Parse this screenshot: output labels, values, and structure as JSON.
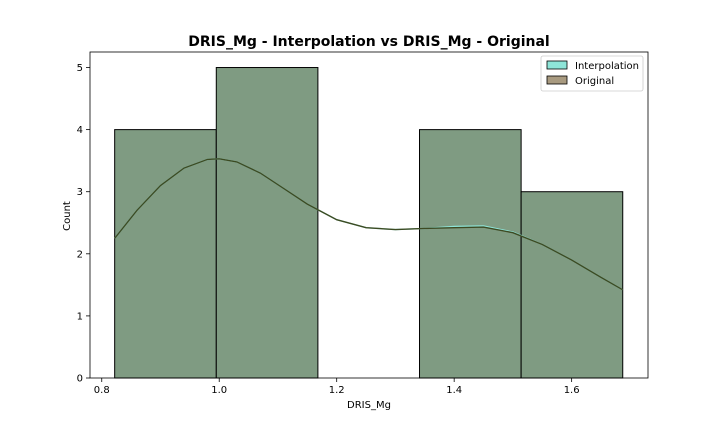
{
  "chart_data": {
    "type": "histogram",
    "title": "DRIS_Mg - Interpolation vs DRIS_Mg - Original",
    "xlabel": "DRIS_Mg",
    "ylabel": "Count",
    "xlim": [
      0.78,
      1.73
    ],
    "ylim": [
      0,
      5.25
    ],
    "xticks": [
      0.8,
      1.0,
      1.2,
      1.4,
      1.6
    ],
    "xtick_labels": [
      "0.8",
      "1.0",
      "1.2",
      "1.4",
      "1.6"
    ],
    "yticks": [
      0,
      1,
      2,
      3,
      4,
      5
    ],
    "ytick_labels": [
      "0",
      "1",
      "2",
      "3",
      "4",
      "5"
    ],
    "grid": false,
    "legend_position": "top-right",
    "bins": [
      {
        "x0": 0.822,
        "x1": 0.995,
        "count": 4
      },
      {
        "x0": 0.995,
        "x1": 1.168,
        "count": 5
      },
      {
        "x0": 1.168,
        "x1": 1.341,
        "count": 0
      },
      {
        "x0": 1.341,
        "x1": 1.514,
        "count": 4
      },
      {
        "x0": 1.514,
        "x1": 1.687,
        "count": 3
      }
    ],
    "series": [
      {
        "name": "Interpolation",
        "color": "#8ee5d8",
        "kde": {
          "x": [
            0.822,
            0.86,
            0.9,
            0.94,
            0.98,
            1.0,
            1.03,
            1.07,
            1.11,
            1.15,
            1.2,
            1.25,
            1.3,
            1.35,
            1.4,
            1.45,
            1.5,
            1.55,
            1.6,
            1.65,
            1.687
          ],
          "y": [
            2.25,
            2.7,
            3.1,
            3.38,
            3.52,
            3.53,
            3.48,
            3.3,
            3.05,
            2.8,
            2.55,
            2.42,
            2.39,
            2.41,
            2.44,
            2.45,
            2.35,
            2.15,
            1.9,
            1.62,
            1.42
          ]
        }
      },
      {
        "name": "Original",
        "color": "#a89a80",
        "kde": {
          "x": [
            0.822,
            0.86,
            0.9,
            0.94,
            0.98,
            1.0,
            1.03,
            1.07,
            1.11,
            1.15,
            1.2,
            1.25,
            1.3,
            1.35,
            1.4,
            1.45,
            1.5,
            1.55,
            1.6,
            1.65,
            1.687
          ],
          "y": [
            2.25,
            2.7,
            3.1,
            3.38,
            3.52,
            3.53,
            3.48,
            3.3,
            3.05,
            2.8,
            2.55,
            2.42,
            2.39,
            2.41,
            2.42,
            2.43,
            2.34,
            2.15,
            1.9,
            1.62,
            1.42
          ]
        }
      }
    ],
    "overlap_color": "#7f9b82",
    "kde_line_color": "#3d4a22"
  }
}
